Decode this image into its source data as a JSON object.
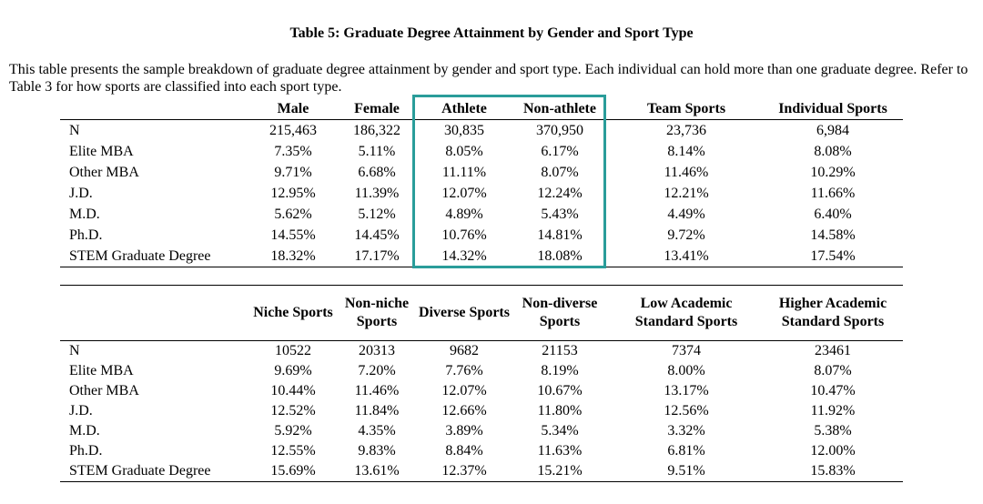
{
  "title": "Table 5: Graduate Degree Attainment by Gender and Sport Type",
  "caption": "This table presents the sample breakdown of graduate degree attainment by gender and sport type. Each individual can hold more than one graduate degree. Refer to Table 3 for how sports are classified into each sport type.",
  "highlight_color": "#2a9d9a",
  "table1": {
    "headers": [
      "",
      "Male",
      "Female",
      "Athlete",
      "Non-athlete",
      "Team Sports",
      "Individual Sports"
    ],
    "rows": [
      [
        "N",
        "215,463",
        "186,322",
        "30,835",
        "370,950",
        "23,736",
        "6,984"
      ],
      [
        "Elite MBA",
        "7.35%",
        "5.11%",
        "8.05%",
        "6.17%",
        "8.14%",
        "8.08%"
      ],
      [
        "Other MBA",
        "9.71%",
        "6.68%",
        "11.11%",
        "8.07%",
        "11.46%",
        "10.29%"
      ],
      [
        "J.D.",
        "12.95%",
        "11.39%",
        "12.07%",
        "12.24%",
        "12.21%",
        "11.66%"
      ],
      [
        "M.D.",
        "5.62%",
        "5.12%",
        "4.89%",
        "5.43%",
        "4.49%",
        "6.40%"
      ],
      [
        "Ph.D.",
        "14.55%",
        "14.45%",
        "10.76%",
        "14.81%",
        "9.72%",
        "14.58%"
      ],
      [
        "STEM Graduate Degree",
        "18.32%",
        "17.17%",
        "14.32%",
        "18.08%",
        "13.41%",
        "17.54%"
      ]
    ]
  },
  "table2": {
    "headers": [
      "",
      "Niche Sports",
      "Non-niche Sports",
      "Diverse Sports",
      "Non-diverse Sports",
      "Low Academic Standard Sports",
      "Higher Academic Standard Sports"
    ],
    "rows": [
      [
        "N",
        "10522",
        "20313",
        "9682",
        "21153",
        "7374",
        "23461"
      ],
      [
        "Elite MBA",
        "9.69%",
        "7.20%",
        "7.76%",
        "8.19%",
        "8.00%",
        "8.07%"
      ],
      [
        "Other MBA",
        "10.44%",
        "11.46%",
        "12.07%",
        "10.67%",
        "13.17%",
        "10.47%"
      ],
      [
        "J.D.",
        "12.52%",
        "11.84%",
        "12.66%",
        "11.80%",
        "12.56%",
        "11.92%"
      ],
      [
        "M.D.",
        "5.92%",
        "4.35%",
        "3.89%",
        "5.34%",
        "3.32%",
        "5.38%"
      ],
      [
        "Ph.D.",
        "12.55%",
        "9.83%",
        "8.84%",
        "11.63%",
        "6.81%",
        "12.00%"
      ],
      [
        "STEM Graduate Degree",
        "15.69%",
        "13.61%",
        "12.37%",
        "15.21%",
        "9.51%",
        "15.83%"
      ]
    ]
  }
}
